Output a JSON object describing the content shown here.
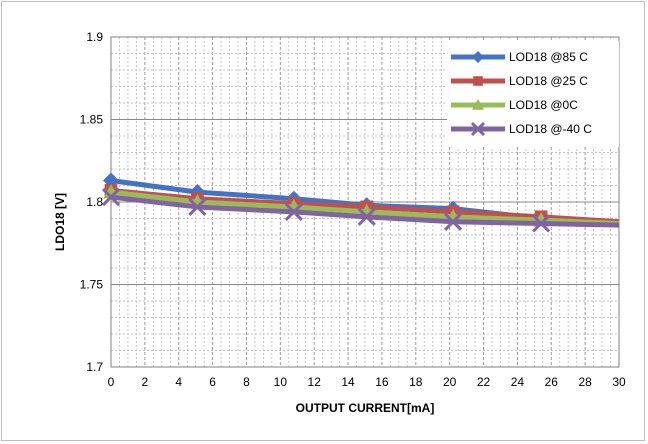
{
  "chart_data": {
    "type": "line",
    "title": "",
    "xlabel": "OUTPUT CURRENT[mA]",
    "ylabel": "LDO18 [V]",
    "xlim": [
      0,
      30
    ],
    "ylim": [
      1.7,
      1.9
    ],
    "xticks": [
      "0",
      "2",
      "4",
      "6",
      "8",
      "10",
      "12",
      "14",
      "16",
      "18",
      "20",
      "22",
      "24",
      "26",
      "28",
      "30"
    ],
    "yticks": [
      "1.7",
      "1.75",
      "1.8",
      "1.85",
      "1.9"
    ],
    "grid": true,
    "legend_position": "top-right",
    "series": [
      {
        "name": "LOD18 @85 C",
        "color": "#4472c4",
        "marker": "diamond",
        "x": [
          0,
          5.1,
          10.8,
          15.1,
          20.2,
          25.4,
          30
        ],
        "y": [
          1.813,
          1.806,
          1.802,
          1.798,
          1.796,
          1.79,
          1.788
        ]
      },
      {
        "name": "LOD18 @25 C",
        "color": "#c0504d",
        "marker": "square",
        "x": [
          0,
          5.1,
          10.8,
          15.1,
          20.2,
          25.4,
          30
        ],
        "y": [
          1.807,
          1.802,
          1.799,
          1.797,
          1.794,
          1.791,
          1.788
        ]
      },
      {
        "name": "LOD18  @0C",
        "color": "#9bbb59",
        "marker": "triangle",
        "x": [
          0,
          5.1,
          10.8,
          15.1,
          20.2,
          25.4,
          30
        ],
        "y": [
          1.806,
          1.8,
          1.797,
          1.794,
          1.791,
          1.789,
          1.787
        ]
      },
      {
        "name": "LOD18 @-40 C",
        "color": "#8064a2",
        "marker": "x",
        "x": [
          0,
          5.1,
          10.8,
          15.1,
          20.2,
          25.4,
          30
        ],
        "y": [
          1.803,
          1.797,
          1.794,
          1.791,
          1.788,
          1.787,
          1.786
        ]
      }
    ]
  }
}
